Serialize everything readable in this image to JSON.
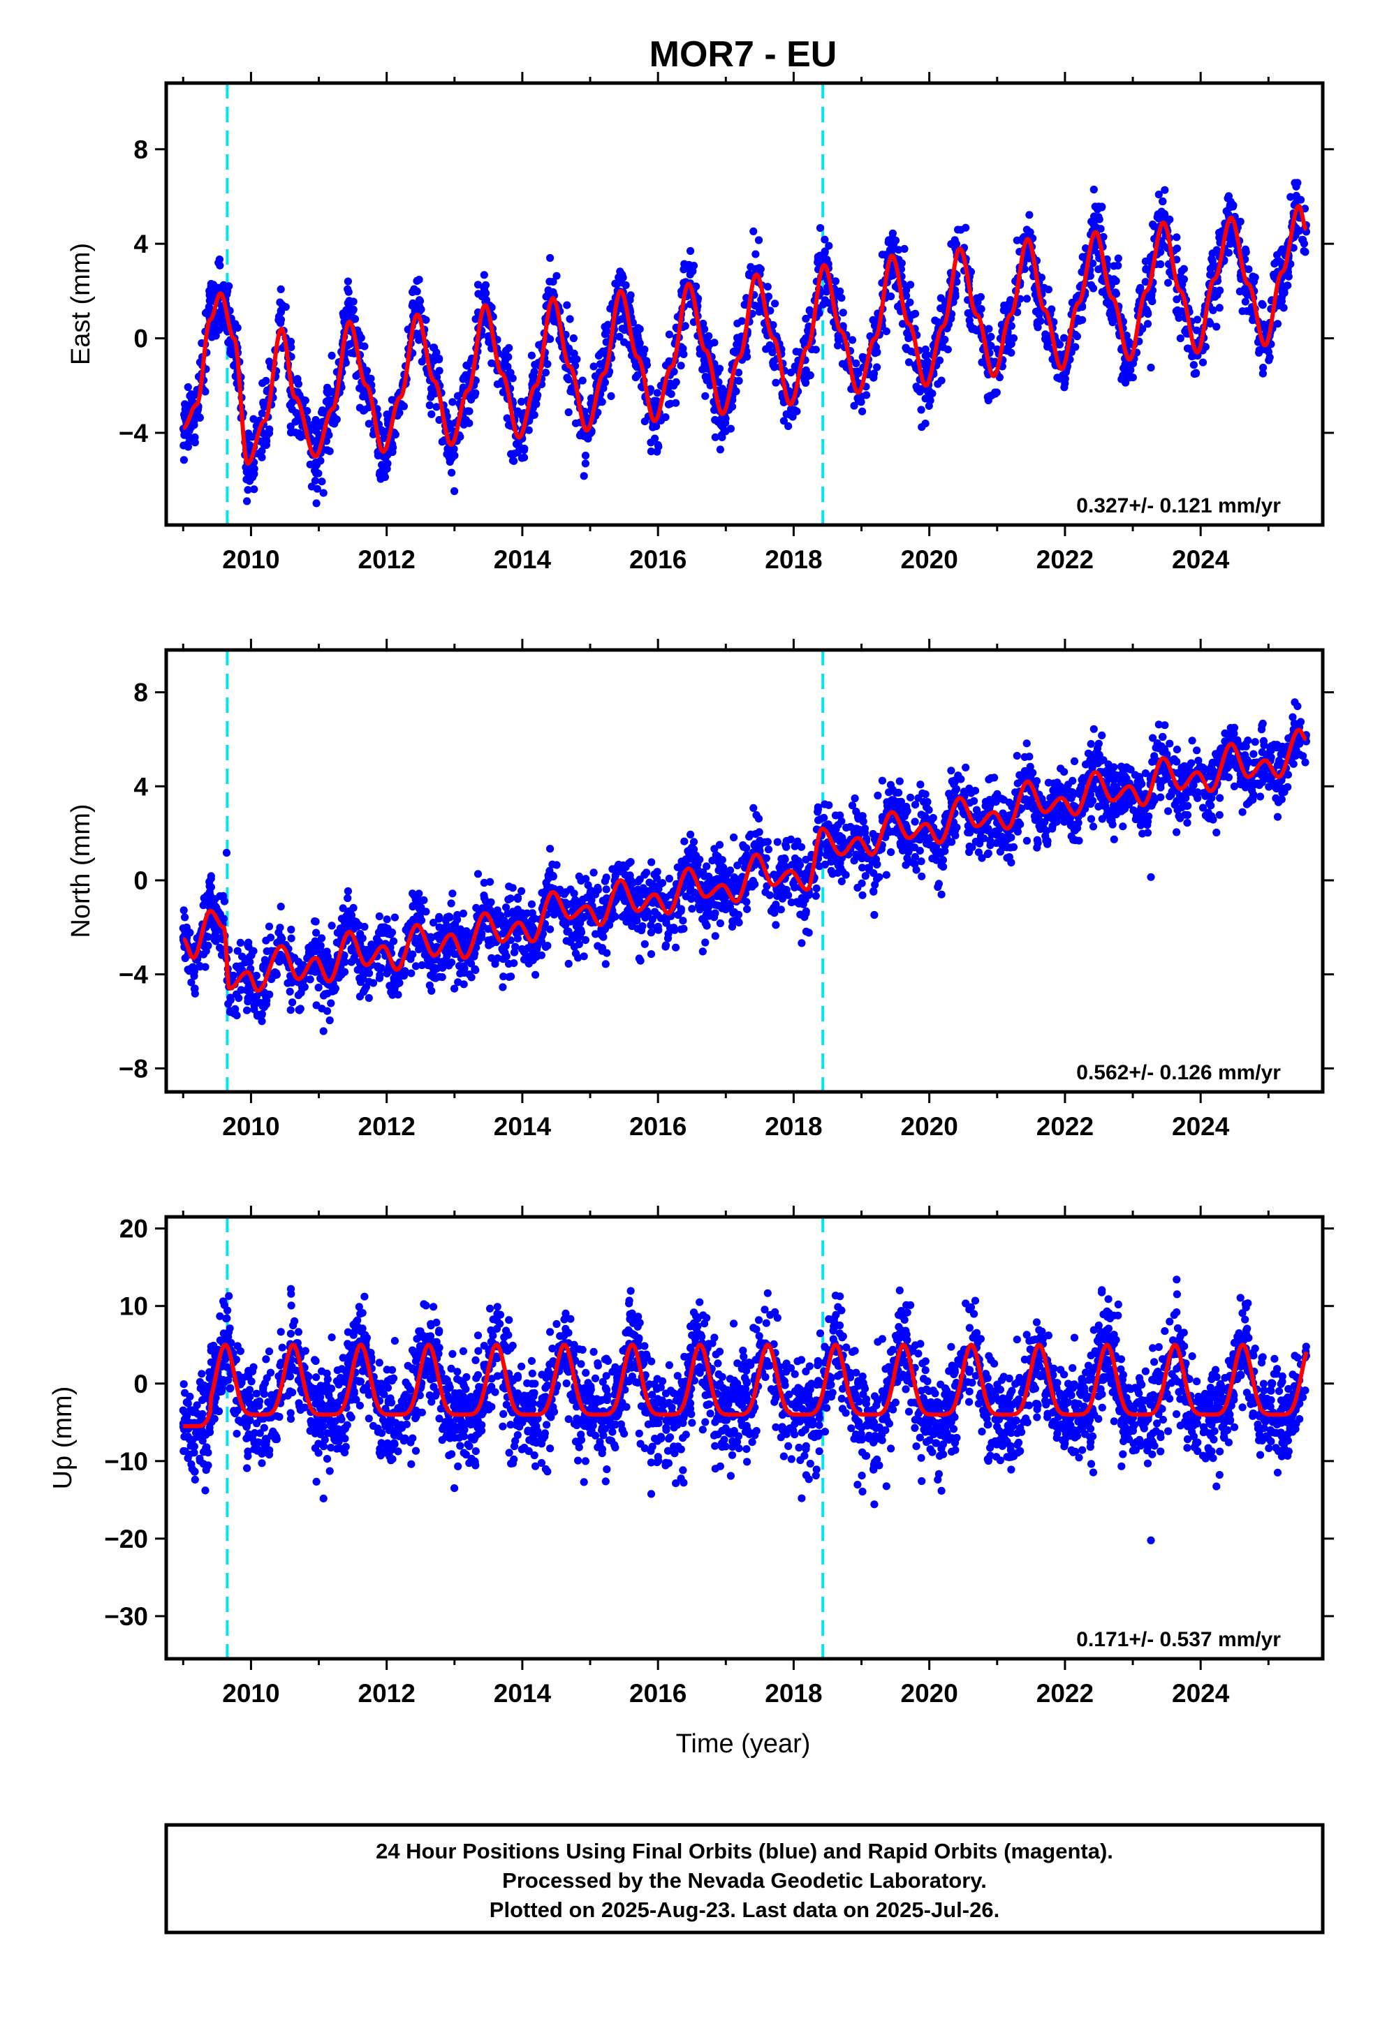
{
  "title": "MOR7 - EU",
  "colors": {
    "points": "#0000ff",
    "fit": "#ff0000",
    "event_lines": "#00e5ee",
    "frame": "#000000"
  },
  "chart_data": [
    {
      "type": "scatter",
      "panel": "east",
      "ylabel": "East (mm)",
      "xlabel": "",
      "xlim": [
        2008.75,
        2025.8
      ],
      "ylim": [
        -7.9,
        10.8
      ],
      "x_ticks": [
        2010,
        2012,
        2014,
        2016,
        2018,
        2020,
        2022,
        2024
      ],
      "y_ticks": [
        -4,
        0,
        4,
        8
      ],
      "x_tick_labels": [
        "2010",
        "2012",
        "2014",
        "2016",
        "2018",
        "2020",
        "2022",
        "2024"
      ],
      "y_tick_labels": [
        "−4",
        "0",
        "4",
        "8"
      ],
      "event_lines_x": [
        2009.65,
        2018.43
      ],
      "rate_text": "0.327+/- 0.121 mm/yr",
      "data_start": 2009.0,
      "data_end": 2025.56,
      "series": [
        {
          "kind": "points",
          "color": "#0000ff"
        },
        {
          "kind": "fit",
          "color": "#ff0000",
          "fit_samples": [
            [
              2009.0,
              -3.8
            ],
            [
              2009.2,
              -2.8
            ],
            [
              2009.4,
              0.8
            ],
            [
              2009.55,
              1.9
            ],
            [
              2009.75,
              0.0
            ],
            [
              2009.95,
              -5.3
            ],
            [
              2010.2,
              -3.5
            ],
            [
              2010.45,
              0.4
            ],
            [
              2010.65,
              -2.5
            ],
            [
              2010.95,
              -5.0
            ],
            [
              2011.2,
              -3.0
            ],
            [
              2011.45,
              0.7
            ],
            [
              2011.7,
              -2.0
            ],
            [
              2011.95,
              -4.8
            ],
            [
              2012.2,
              -2.5
            ],
            [
              2012.45,
              1.0
            ],
            [
              2012.7,
              -1.8
            ],
            [
              2012.95,
              -4.5
            ],
            [
              2013.2,
              -2.2
            ],
            [
              2013.45,
              1.4
            ],
            [
              2013.7,
              -1.5
            ],
            [
              2013.95,
              -4.2
            ],
            [
              2014.2,
              -2.0
            ],
            [
              2014.45,
              1.7
            ],
            [
              2014.7,
              -1.2
            ],
            [
              2014.95,
              -3.9
            ],
            [
              2015.2,
              -1.5
            ],
            [
              2015.45,
              2.0
            ],
            [
              2015.7,
              -0.8
            ],
            [
              2015.95,
              -3.5
            ],
            [
              2016.2,
              -1.2
            ],
            [
              2016.45,
              2.3
            ],
            [
              2016.7,
              -0.5
            ],
            [
              2016.95,
              -3.2
            ],
            [
              2017.2,
              -0.8
            ],
            [
              2017.45,
              2.7
            ],
            [
              2017.7,
              0.0
            ],
            [
              2017.95,
              -2.8
            ],
            [
              2018.2,
              -0.4
            ],
            [
              2018.45,
              3.1
            ],
            [
              2018.7,
              0.3
            ],
            [
              2018.95,
              -2.3
            ],
            [
              2019.2,
              0.0
            ],
            [
              2019.45,
              3.5
            ],
            [
              2019.7,
              0.6
            ],
            [
              2019.95,
              -2.0
            ],
            [
              2020.2,
              0.5
            ],
            [
              2020.45,
              3.8
            ],
            [
              2020.7,
              1.0
            ],
            [
              2020.95,
              -1.6
            ],
            [
              2021.2,
              1.0
            ],
            [
              2021.45,
              4.2
            ],
            [
              2021.7,
              1.2
            ],
            [
              2021.95,
              -1.3
            ],
            [
              2022.2,
              1.5
            ],
            [
              2022.45,
              4.5
            ],
            [
              2022.7,
              1.7
            ],
            [
              2022.95,
              -0.9
            ],
            [
              2023.2,
              2.0
            ],
            [
              2023.45,
              4.9
            ],
            [
              2023.7,
              2.0
            ],
            [
              2023.95,
              -0.6
            ],
            [
              2024.2,
              2.5
            ],
            [
              2024.45,
              5.1
            ],
            [
              2024.7,
              2.3
            ],
            [
              2024.95,
              -0.3
            ],
            [
              2025.2,
              2.8
            ],
            [
              2025.45,
              5.6
            ],
            [
              2025.56,
              4.6
            ]
          ]
        }
      ]
    },
    {
      "type": "scatter",
      "panel": "north",
      "ylabel": "North (mm)",
      "xlabel": "",
      "xlim": [
        2008.75,
        2025.8
      ],
      "ylim": [
        -9.0,
        9.8
      ],
      "x_ticks": [
        2010,
        2012,
        2014,
        2016,
        2018,
        2020,
        2022,
        2024
      ],
      "y_ticks": [
        -8,
        -4,
        0,
        4,
        8
      ],
      "x_tick_labels": [
        "2010",
        "2012",
        "2014",
        "2016",
        "2018",
        "2020",
        "2022",
        "2024"
      ],
      "y_tick_labels": [
        "−8",
        "−4",
        "0",
        "4",
        "8"
      ],
      "event_lines_x": [
        2009.65,
        2018.43
      ],
      "rate_text": "0.562+/- 0.126 mm/yr",
      "data_start": 2009.0,
      "data_end": 2025.56,
      "series": [
        {
          "kind": "points",
          "color": "#0000ff"
        },
        {
          "kind": "fit",
          "color": "#ff0000",
          "fit_samples": [
            [
              2009.0,
              -2.5
            ],
            [
              2009.15,
              -3.3
            ],
            [
              2009.4,
              -1.3
            ],
            [
              2009.6,
              -2.0
            ],
            [
              2009.68,
              -4.6
            ],
            [
              2009.95,
              -3.9
            ],
            [
              2010.1,
              -4.7
            ],
            [
              2010.45,
              -2.8
            ],
            [
              2010.7,
              -4.2
            ],
            [
              2010.95,
              -3.3
            ],
            [
              2011.15,
              -4.3
            ],
            [
              2011.45,
              -2.2
            ],
            [
              2011.7,
              -3.6
            ],
            [
              2011.95,
              -2.8
            ],
            [
              2012.15,
              -3.8
            ],
            [
              2012.45,
              -1.9
            ],
            [
              2012.7,
              -3.2
            ],
            [
              2012.95,
              -2.3
            ],
            [
              2013.15,
              -3.3
            ],
            [
              2013.45,
              -1.4
            ],
            [
              2013.7,
              -2.6
            ],
            [
              2013.95,
              -1.8
            ],
            [
              2014.15,
              -2.6
            ],
            [
              2014.45,
              -0.5
            ],
            [
              2014.7,
              -1.6
            ],
            [
              2014.95,
              -1.1
            ],
            [
              2015.15,
              -1.9
            ],
            [
              2015.45,
              0.0
            ],
            [
              2015.7,
              -1.3
            ],
            [
              2015.95,
              -0.6
            ],
            [
              2016.15,
              -1.4
            ],
            [
              2016.45,
              0.5
            ],
            [
              2016.7,
              -0.7
            ],
            [
              2016.95,
              -0.2
            ],
            [
              2017.15,
              -0.9
            ],
            [
              2017.45,
              1.1
            ],
            [
              2017.7,
              -0.2
            ],
            [
              2017.95,
              0.4
            ],
            [
              2018.2,
              -0.4
            ],
            [
              2018.42,
              2.2
            ],
            [
              2018.7,
              1.1
            ],
            [
              2018.95,
              1.8
            ],
            [
              2019.15,
              1.1
            ],
            [
              2019.45,
              2.9
            ],
            [
              2019.7,
              1.8
            ],
            [
              2019.95,
              2.4
            ],
            [
              2020.15,
              1.6
            ],
            [
              2020.45,
              3.5
            ],
            [
              2020.7,
              2.3
            ],
            [
              2020.95,
              2.9
            ],
            [
              2021.15,
              2.2
            ],
            [
              2021.45,
              4.2
            ],
            [
              2021.7,
              2.9
            ],
            [
              2021.95,
              3.5
            ],
            [
              2022.15,
              2.8
            ],
            [
              2022.45,
              4.6
            ],
            [
              2022.7,
              3.4
            ],
            [
              2022.95,
              4.0
            ],
            [
              2023.15,
              3.2
            ],
            [
              2023.45,
              5.2
            ],
            [
              2023.7,
              3.9
            ],
            [
              2023.95,
              4.6
            ],
            [
              2024.15,
              3.8
            ],
            [
              2024.45,
              5.8
            ],
            [
              2024.7,
              4.4
            ],
            [
              2024.95,
              5.1
            ],
            [
              2025.15,
              4.4
            ],
            [
              2025.45,
              6.4
            ],
            [
              2025.56,
              6.0
            ]
          ]
        }
      ]
    },
    {
      "type": "scatter",
      "panel": "up",
      "ylabel": "Up (mm)",
      "xlabel": "Time (year)",
      "xlim": [
        2008.75,
        2025.8
      ],
      "ylim": [
        -35.5,
        21.5
      ],
      "x_ticks": [
        2010,
        2012,
        2014,
        2016,
        2018,
        2020,
        2022,
        2024
      ],
      "y_ticks": [
        -30,
        -20,
        -10,
        0,
        10,
        20
      ],
      "x_tick_labels": [
        "2010",
        "2012",
        "2014",
        "2016",
        "2018",
        "2020",
        "2022",
        "2024"
      ],
      "y_tick_labels": [
        "−30",
        "−20",
        "−10",
        "0",
        "10",
        "20"
      ],
      "event_lines_x": [
        2009.65,
        2018.43
      ],
      "rate_text": "0.171+/- 0.537 mm/yr",
      "data_start": 2009.0,
      "data_end": 2025.56,
      "series": [
        {
          "kind": "points",
          "color": "#0000ff"
        },
        {
          "kind": "fit",
          "color": "#ff0000",
          "mean_cycle": 0.0,
          "amplitude": 5.0,
          "peak_phase": 0.62
        }
      ]
    }
  ],
  "footer": {
    "line1": "24 Hour Positions Using Final Orbits (blue) and Rapid Orbits (magenta).",
    "line2": "Processed by the Nevada Geodetic Laboratory.",
    "line3": "Plotted on 2025-Aug-23. Last data on 2025-Jul-26."
  }
}
